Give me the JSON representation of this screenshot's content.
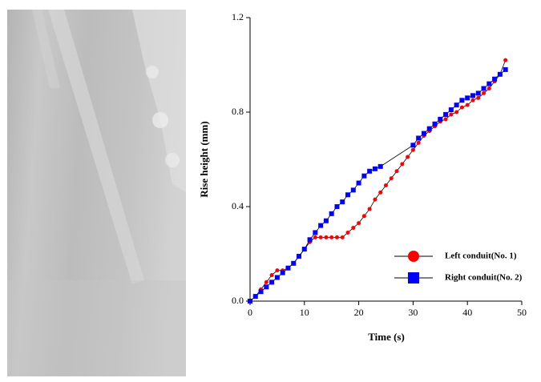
{
  "chart_data": {
    "type": "line",
    "xlabel": "Time (s)",
    "ylabel": "Rise height (mm)",
    "xlim": [
      0,
      50
    ],
    "xticks": [
      0,
      10,
      20,
      30,
      40,
      50
    ],
    "ylim": [
      0,
      1.2
    ],
    "yticks": [
      {
        "value": 0,
        "label": "0.0"
      },
      0.4,
      0.8,
      1.2
    ],
    "legend": "lower right",
    "series": [
      {
        "name": "Left conduit(No. 1)",
        "color": "#ff0000",
        "marker": "circle",
        "x": [
          0,
          1,
          2,
          3,
          4,
          5,
          6,
          7,
          8,
          9,
          10,
          11,
          12,
          13,
          14,
          15,
          16,
          17,
          18,
          19,
          20,
          21,
          22,
          23,
          24,
          25,
          26,
          27,
          28,
          29,
          30,
          31,
          32,
          33,
          34,
          35,
          36,
          37,
          38,
          39,
          40,
          41,
          42,
          43,
          44,
          45,
          46,
          47
        ],
        "values": [
          0,
          0.02,
          0.05,
          0.08,
          0.11,
          0.13,
          0.13,
          0.14,
          0.16,
          0.19,
          0.22,
          0.25,
          0.27,
          0.27,
          0.27,
          0.27,
          0.27,
          0.27,
          0.29,
          0.31,
          0.33,
          0.36,
          0.39,
          0.43,
          0.46,
          0.49,
          0.52,
          0.55,
          0.58,
          0.61,
          0.64,
          0.67,
          0.7,
          0.72,
          0.74,
          0.76,
          0.77,
          0.79,
          0.8,
          0.82,
          0.83,
          0.85,
          0.86,
          0.88,
          0.9,
          0.93,
          0.96,
          1.02
        ]
      },
      {
        "name": "Right conduit(No. 2)",
        "color": "#0000ff",
        "marker": "square",
        "x": [
          0,
          1,
          2,
          3,
          4,
          5,
          6,
          7,
          8,
          9,
          10,
          11,
          12,
          13,
          14,
          15,
          16,
          17,
          18,
          19,
          20,
          21,
          22,
          23,
          24,
          30,
          31,
          32,
          33,
          34,
          35,
          36,
          37,
          38,
          39,
          40,
          41,
          42,
          43,
          44,
          45,
          46,
          47
        ],
        "values": [
          0,
          0.02,
          0.04,
          0.06,
          0.08,
          0.1,
          0.12,
          0.14,
          0.16,
          0.19,
          0.22,
          0.26,
          0.29,
          0.32,
          0.34,
          0.37,
          0.4,
          0.42,
          0.45,
          0.47,
          0.5,
          0.53,
          0.55,
          0.56,
          0.57,
          0.66,
          0.69,
          0.71,
          0.73,
          0.75,
          0.77,
          0.79,
          0.81,
          0.83,
          0.85,
          0.86,
          0.87,
          0.88,
          0.9,
          0.92,
          0.94,
          0.96,
          0.98
        ]
      }
    ]
  }
}
